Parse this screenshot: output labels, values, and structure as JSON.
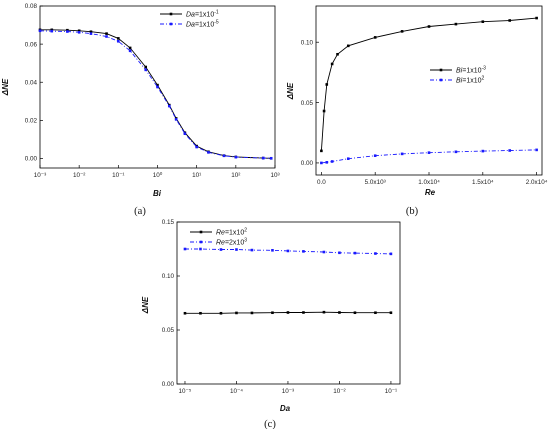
{
  "chart_data": [
    {
      "type": "line",
      "panel_label": "(a)",
      "xlabel": "Bi",
      "ylabel": "ΔNE",
      "xscale": "log",
      "xlim": [
        0.001,
        1000
      ],
      "ylim": [
        -0.005,
        0.08
      ],
      "xticks": [
        "10⁻³",
        "10⁻²",
        "10⁻¹",
        "10⁰",
        "10¹",
        "10²",
        "10³"
      ],
      "yticks": [
        "0.00",
        "0.02",
        "0.04",
        "0.06",
        "0.08"
      ],
      "legend_position": "top-right",
      "series": [
        {
          "name_var": "Da",
          "name_val": "=1x10",
          "name_exp": "-1",
          "color": "#000000",
          "dash": "",
          "x": [
            0.001,
            0.002,
            0.005,
            0.01,
            0.02,
            0.05,
            0.1,
            0.2,
            0.5,
            1,
            2,
            3,
            5,
            10,
            20,
            50,
            100,
            500,
            800
          ],
          "y": [
            0.0675,
            0.0675,
            0.0673,
            0.067,
            0.0665,
            0.0655,
            0.063,
            0.058,
            0.048,
            0.0385,
            0.028,
            0.021,
            0.0135,
            0.0065,
            0.0035,
            0.0015,
            0.0008,
            0.0002,
            0.0001
          ]
        },
        {
          "name_var": "Da",
          "name_val": "=1x10",
          "name_exp": "-5",
          "color": "#1a1aff",
          "dash": "4,2,1,2",
          "x": [
            0.001,
            0.002,
            0.005,
            0.01,
            0.02,
            0.05,
            0.1,
            0.2,
            0.5,
            1,
            2,
            3,
            5,
            10,
            20,
            50,
            100,
            500,
            800
          ],
          "y": [
            0.067,
            0.0668,
            0.0666,
            0.0662,
            0.0655,
            0.064,
            0.0615,
            0.0565,
            0.0465,
            0.0375,
            0.0275,
            0.0205,
            0.013,
            0.006,
            0.0032,
            0.0014,
            0.0007,
            0.0002,
            0.0001
          ]
        }
      ]
    },
    {
      "type": "line",
      "panel_label": "(b)",
      "xlabel": "Re",
      "ylabel": "ΔNE",
      "xscale": "linear",
      "xlim": [
        -500,
        20500
      ],
      "ylim": [
        -0.01,
        0.13
      ],
      "xticks": [
        "0.0",
        "5.0x10³",
        "1.0x10⁴",
        "1.5x10⁴",
        "2.0x10⁴"
      ],
      "yticks": [
        "0.00",
        "0.05",
        "0.10"
      ],
      "legend_position": "center-right",
      "series": [
        {
          "name_var": "Bi",
          "name_val": "=1x10",
          "name_exp": "-3",
          "color": "#000000",
          "dash": "",
          "x": [
            0,
            250,
            500,
            1000,
            1500,
            2500,
            5000,
            7500,
            10000,
            12500,
            15000,
            17500,
            20000
          ],
          "y": [
            0.01,
            0.043,
            0.065,
            0.082,
            0.09,
            0.097,
            0.104,
            0.109,
            0.113,
            0.115,
            0.117,
            0.118,
            0.12
          ]
        },
        {
          "name_var": "Bi",
          "name_val": "=1x10",
          "name_exp": "2",
          "color": "#1a1aff",
          "dash": "4,2,1,2",
          "x": [
            0,
            500,
            1000,
            2500,
            5000,
            7500,
            10000,
            12500,
            15000,
            17500,
            20000
          ],
          "y": [
            0.0,
            0.0005,
            0.0012,
            0.0035,
            0.006,
            0.0075,
            0.0085,
            0.0092,
            0.0098,
            0.0103,
            0.0108
          ]
        }
      ]
    },
    {
      "type": "line",
      "panel_label": "(c)",
      "xlabel": "Da",
      "ylabel": "ΔNE",
      "xscale": "log",
      "xlim": [
        7e-06,
        0.15
      ],
      "ylim": [
        0.0,
        0.15
      ],
      "xticks": [
        "10⁻⁵",
        "10⁻⁴",
        "10⁻³",
        "10⁻²",
        "10⁻¹"
      ],
      "yticks": [
        "0.00",
        "0.05",
        "0.10",
        "0.15"
      ],
      "legend_position": "top-left",
      "series": [
        {
          "name_var": "Re",
          "name_val": "=1x10",
          "name_exp": "2",
          "color": "#000000",
          "dash": "",
          "x": [
            1e-05,
            2e-05,
            5e-05,
            0.0001,
            0.0002,
            0.0005,
            0.001,
            0.002,
            0.005,
            0.01,
            0.02,
            0.05,
            0.1
          ],
          "y": [
            0.0655,
            0.0655,
            0.0655,
            0.0658,
            0.0658,
            0.066,
            0.0662,
            0.0662,
            0.0665,
            0.0662,
            0.066,
            0.066,
            0.066
          ]
        },
        {
          "name_var": "Re",
          "name_val": "=2x10",
          "name_exp": "3",
          "color": "#1a1aff",
          "dash": "4,2,1,2",
          "x": [
            1e-05,
            2e-05,
            5e-05,
            0.0001,
            0.0002,
            0.0005,
            0.001,
            0.002,
            0.005,
            0.01,
            0.02,
            0.05,
            0.1
          ],
          "y": [
            0.125,
            0.125,
            0.1245,
            0.1245,
            0.124,
            0.1238,
            0.1232,
            0.1228,
            0.1222,
            0.1215,
            0.1212,
            0.1208,
            0.1205
          ]
        }
      ]
    }
  ]
}
